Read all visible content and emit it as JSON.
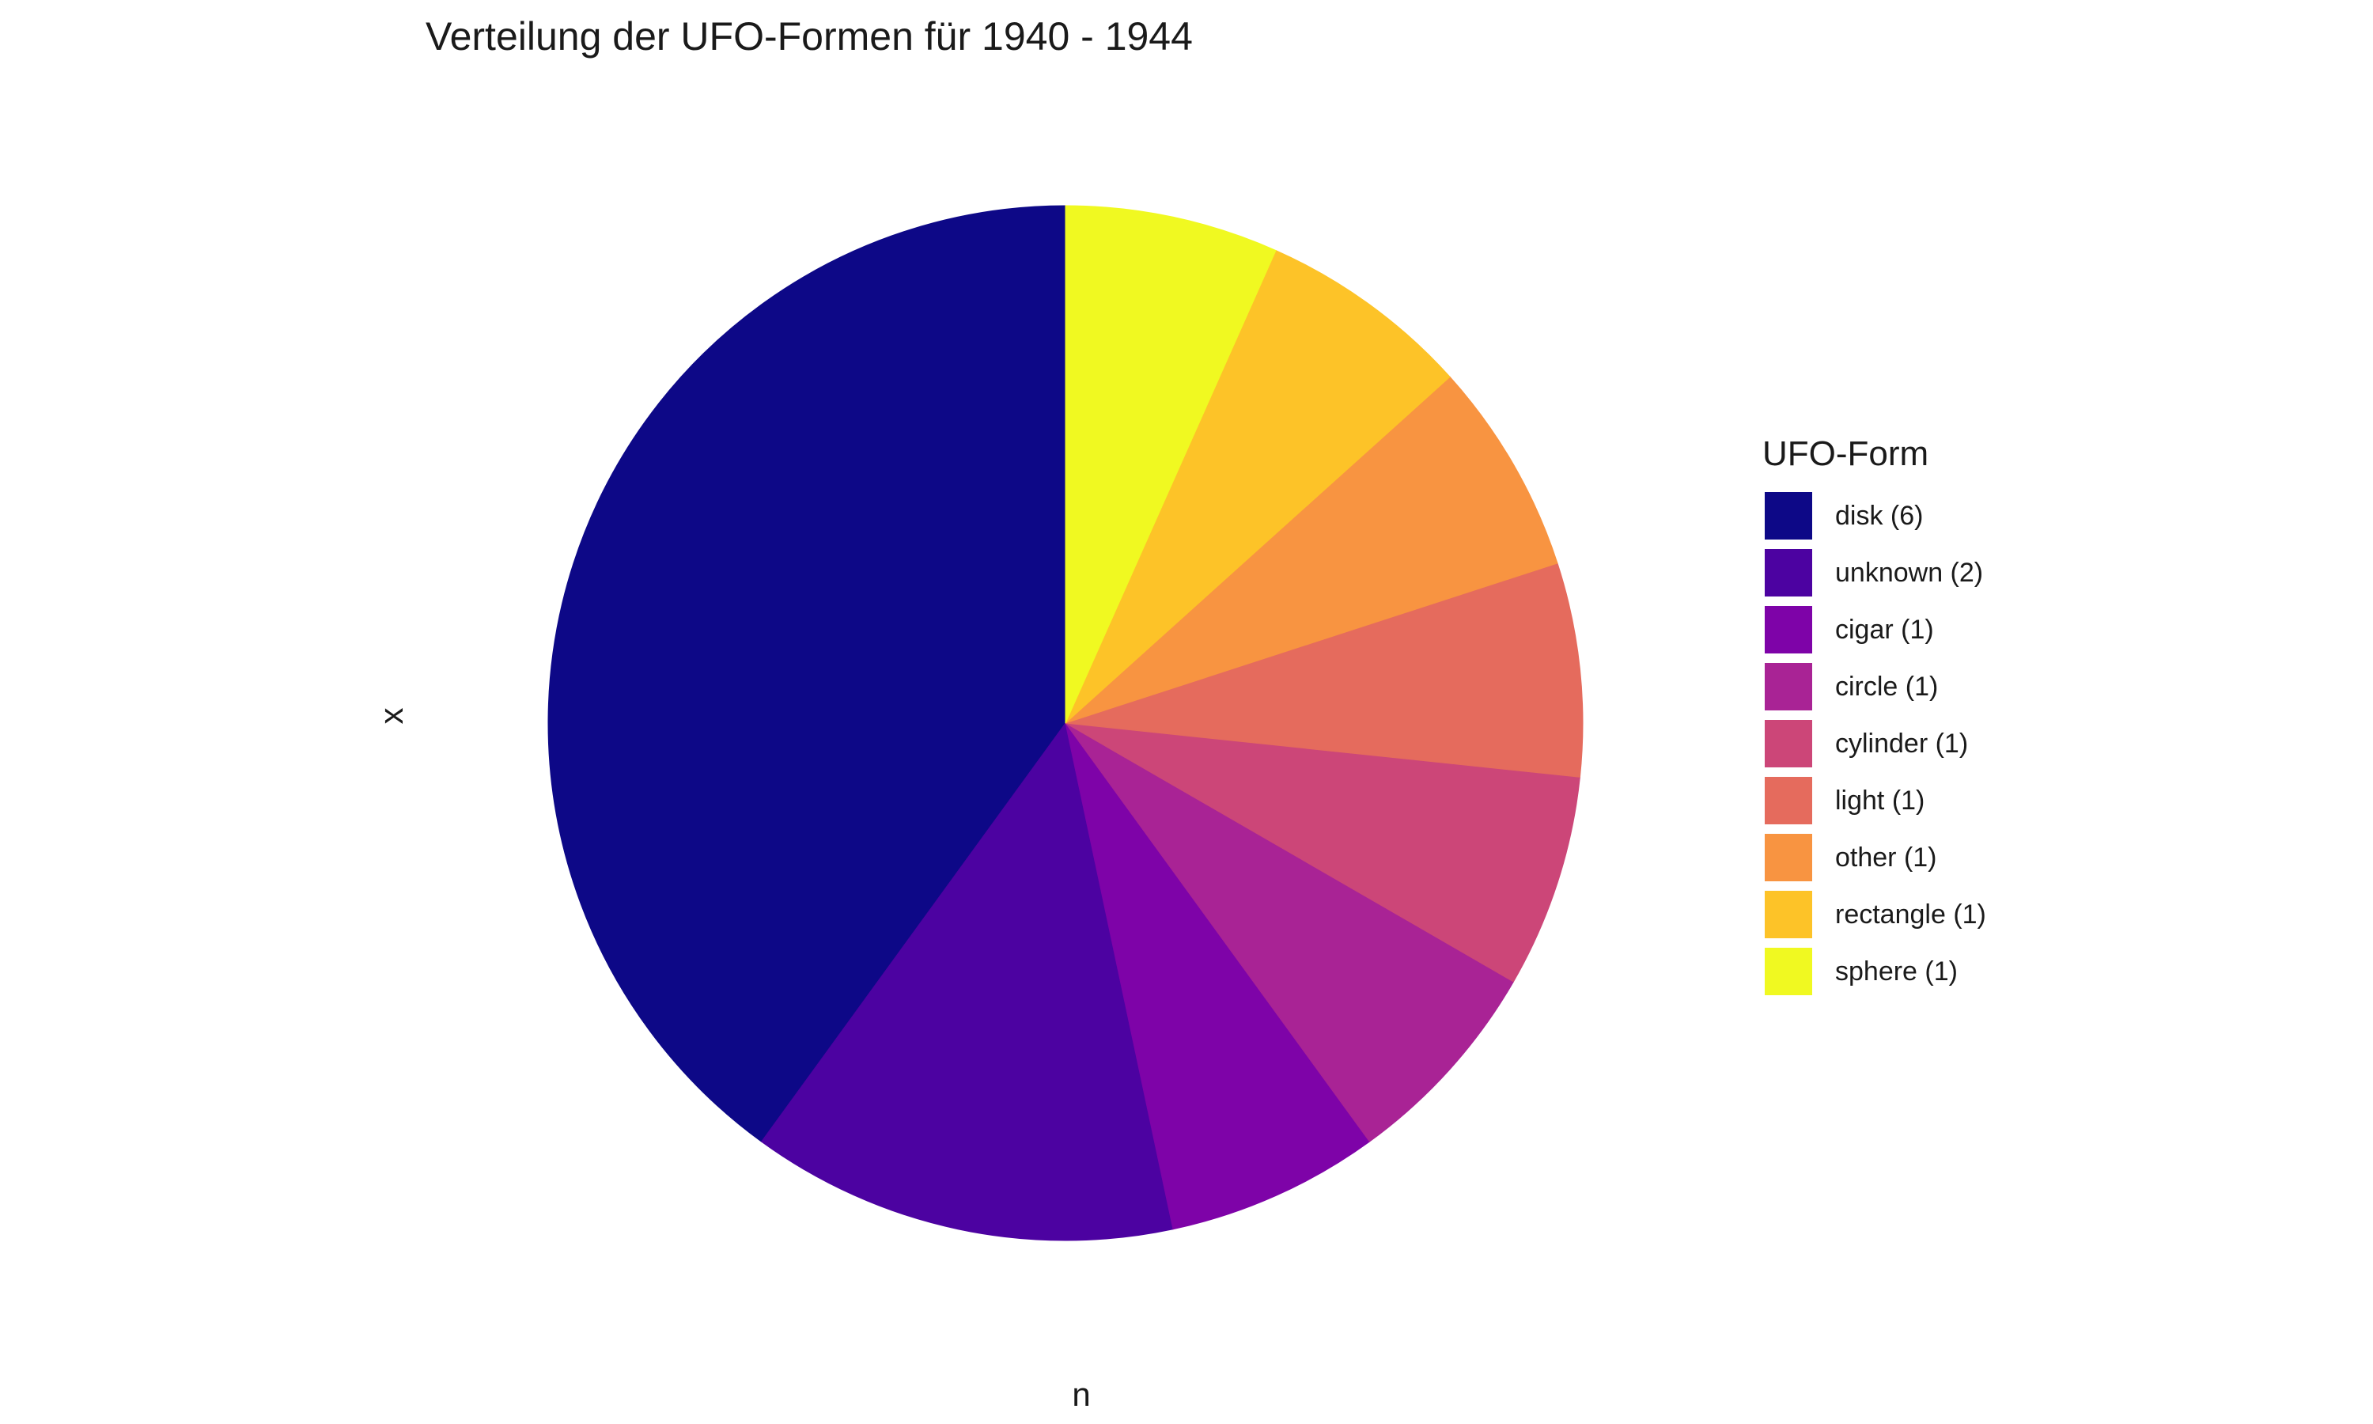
{
  "chart_data": {
    "type": "pie",
    "title": "Verteilung der UFO-Formen für 1940 - 1944",
    "xlabel": "n",
    "ylabel": "x",
    "legend_title": "UFO-Form",
    "legend_position": "right",
    "grid": false,
    "slices": [
      {
        "category": "disk",
        "value": 6,
        "label": "disk (6)",
        "color": "#0D0887"
      },
      {
        "category": "unknown",
        "value": 2,
        "label": "unknown (2)",
        "color": "#4C02A1"
      },
      {
        "category": "cigar",
        "value": 1,
        "label": "cigar (1)",
        "color": "#7E03A8"
      },
      {
        "category": "circle",
        "value": 1,
        "label": "circle (1)",
        "color": "#A92395"
      },
      {
        "category": "cylinder",
        "value": 1,
        "label": "cylinder (1)",
        "color": "#CC4678"
      },
      {
        "category": "light",
        "value": 1,
        "label": "light (1)",
        "color": "#E56B5D"
      },
      {
        "category": "other",
        "value": 1,
        "label": "other (1)",
        "color": "#F89441"
      },
      {
        "category": "rectangle",
        "value": 1,
        "label": "rectangle (1)",
        "color": "#FDC328"
      },
      {
        "category": "sphere",
        "value": 1,
        "label": "sphere (1)",
        "color": "#F0F921"
      }
    ]
  }
}
